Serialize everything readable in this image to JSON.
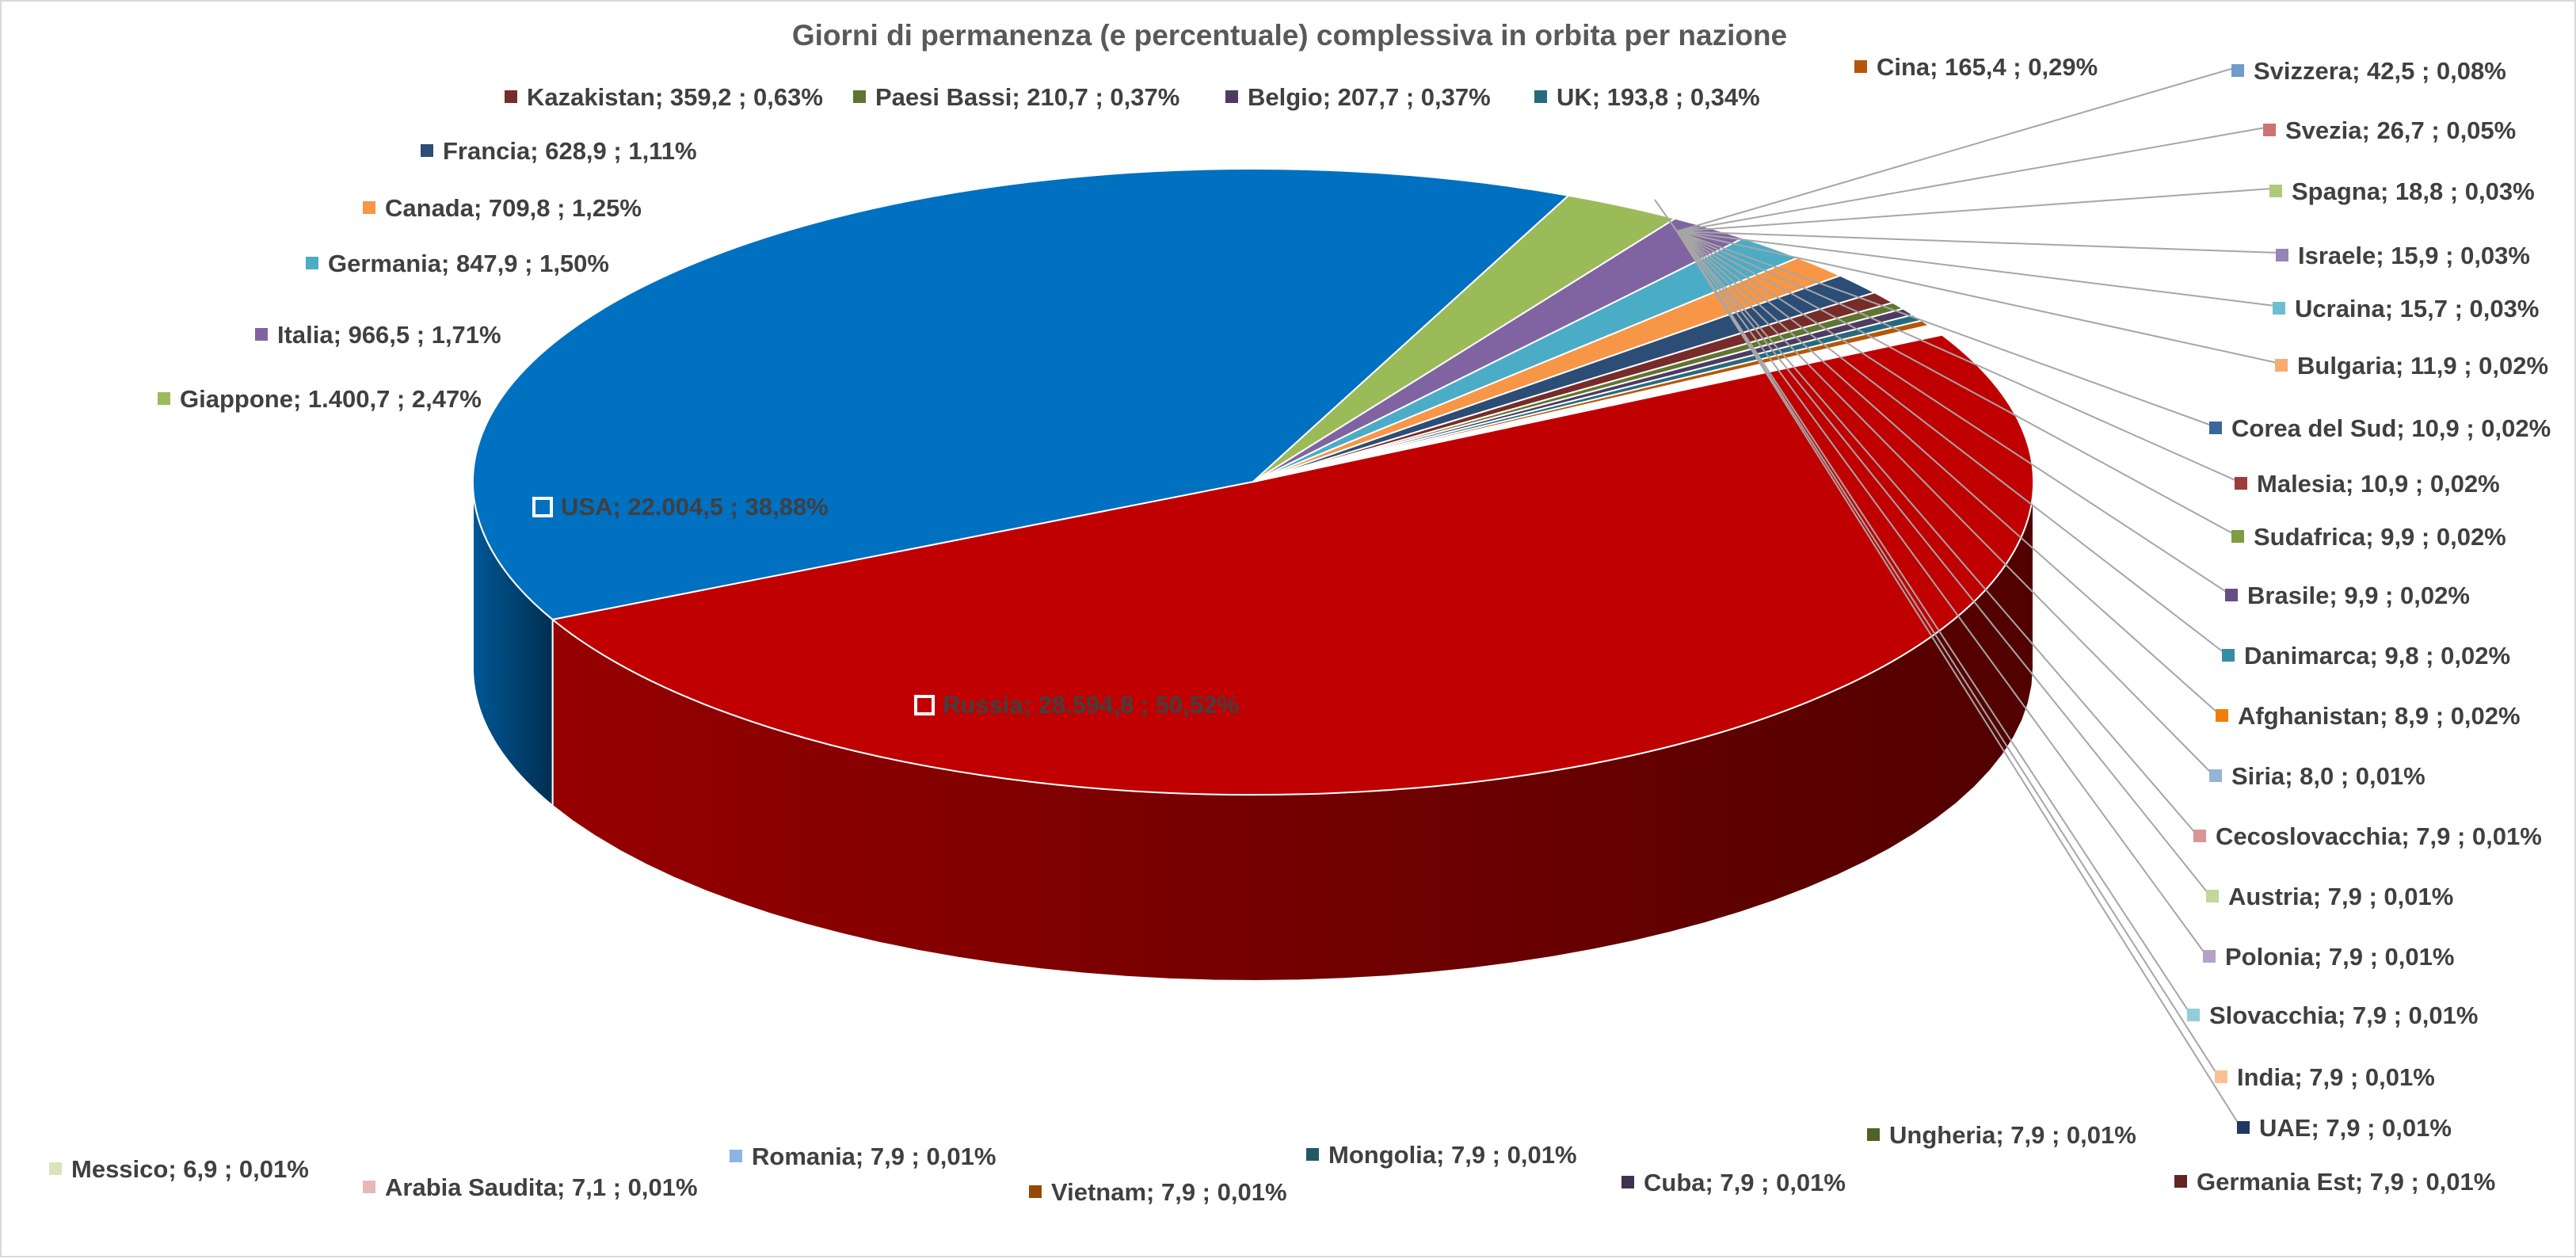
{
  "chart_data": {
    "type": "pie",
    "style": "3d",
    "title": "Giorni di permanenza (e percentuale) complessiva in orbita per nazione",
    "slices": [
      {
        "name": "Russia",
        "value": 28594.8,
        "value_text": "28.594,8",
        "percent_text": "50,52%",
        "color": "#C00000"
      },
      {
        "name": "USA",
        "value": 22004.5,
        "value_text": "22.004,5",
        "percent_text": "38,88%",
        "color": "#0070C0"
      },
      {
        "name": "Giappone",
        "value": 1400.7,
        "value_text": "1.400,7",
        "percent_text": "2,47%",
        "color": "#9BBB59"
      },
      {
        "name": "Italia",
        "value": 966.5,
        "value_text": "966,5",
        "percent_text": "1,71%",
        "color": "#8064A2"
      },
      {
        "name": "Germania",
        "value": 847.9,
        "value_text": "847,9",
        "percent_text": "1,50%",
        "color": "#4BACC6"
      },
      {
        "name": "Canada",
        "value": 709.8,
        "value_text": "709,8",
        "percent_text": "1,25%",
        "color": "#F79646"
      },
      {
        "name": "Francia",
        "value": 628.9,
        "value_text": "628,9",
        "percent_text": "1,11%",
        "color": "#2C4D75"
      },
      {
        "name": "Kazakistan",
        "value": 359.2,
        "value_text": "359,2",
        "percent_text": "0,63%",
        "color": "#772C2A"
      },
      {
        "name": "Paesi Bassi",
        "value": 210.7,
        "value_text": "210,7",
        "percent_text": "0,37%",
        "color": "#5F7530"
      },
      {
        "name": "Belgio",
        "value": 207.7,
        "value_text": "207,7",
        "percent_text": "0,37%",
        "color": "#4D3B62"
      },
      {
        "name": "UK",
        "value": 193.8,
        "value_text": "193,8",
        "percent_text": "0,34%",
        "color": "#276A7C"
      },
      {
        "name": "Cina",
        "value": 165.4,
        "value_text": "165,4",
        "percent_text": "0,29%",
        "color": "#B65708"
      },
      {
        "name": "Svizzera",
        "value": 42.5,
        "value_text": "42,5",
        "percent_text": "0,08%",
        "color": "#729ACA"
      },
      {
        "name": "Svezia",
        "value": 26.7,
        "value_text": "26,7",
        "percent_text": "0,05%",
        "color": "#CD7371"
      },
      {
        "name": "Spagna",
        "value": 18.8,
        "value_text": "18,8",
        "percent_text": "0,03%",
        "color": "#AFC97A"
      },
      {
        "name": "Israele",
        "value": 15.9,
        "value_text": "15,9",
        "percent_text": "0,03%",
        "color": "#9983B5"
      },
      {
        "name": "Ucraina",
        "value": 15.7,
        "value_text": "15,7",
        "percent_text": "0,03%",
        "color": "#6FBDD1"
      },
      {
        "name": "Bulgaria",
        "value": 11.9,
        "value_text": "11,9",
        "percent_text": "0,02%",
        "color": "#F9AB6B"
      },
      {
        "name": "Corea del Sud",
        "value": 10.9,
        "value_text": "10,9",
        "percent_text": "0,02%",
        "color": "#3A679C"
      },
      {
        "name": "Malesia",
        "value": 10.9,
        "value_text": "10,9",
        "percent_text": "0,02%",
        "color": "#9F3B38"
      },
      {
        "name": "Sudafrica",
        "value": 9.9,
        "value_text": "9,9",
        "percent_text": "0,02%",
        "color": "#7E9C40"
      },
      {
        "name": "Brasile",
        "value": 9.9,
        "value_text": "9,9",
        "percent_text": "0,02%",
        "color": "#664F82"
      },
      {
        "name": "Danimarca",
        "value": 9.8,
        "value_text": "9,8",
        "percent_text": "0,02%",
        "color": "#358EA6"
      },
      {
        "name": "Afghanistan",
        "value": 8.9,
        "value_text": "8,9",
        "percent_text": "0,02%",
        "color": "#F07F09"
      },
      {
        "name": "Siria",
        "value": 8.0,
        "value_text": "8,0",
        "percent_text": "0,01%",
        "color": "#95B3D7"
      },
      {
        "name": "Cecoslovacchia",
        "value": 7.9,
        "value_text": "7,9",
        "percent_text": "0,01%",
        "color": "#D99694"
      },
      {
        "name": "Austria",
        "value": 7.9,
        "value_text": "7,9",
        "percent_text": "0,01%",
        "color": "#C3D69B"
      },
      {
        "name": "Polonia",
        "value": 7.9,
        "value_text": "7,9",
        "percent_text": "0,01%",
        "color": "#B3A2C7"
      },
      {
        "name": "Slovacchia",
        "value": 7.9,
        "value_text": "7,9",
        "percent_text": "0,01%",
        "color": "#93CDDD"
      },
      {
        "name": "India",
        "value": 7.9,
        "value_text": "7,9",
        "percent_text": "0,01%",
        "color": "#FAC090"
      },
      {
        "name": "UAE",
        "value": 7.9,
        "value_text": "7,9",
        "percent_text": "0,01%",
        "color": "#1F3864"
      },
      {
        "name": "Germania Est",
        "value": 7.9,
        "value_text": "7,9",
        "percent_text": "0,01%",
        "color": "#632523"
      },
      {
        "name": "Ungheria",
        "value": 7.9,
        "value_text": "7,9",
        "percent_text": "0,01%",
        "color": "#4F6228"
      },
      {
        "name": "Cuba",
        "value": 7.9,
        "value_text": "7,9",
        "percent_text": "0,01%",
        "color": "#3F3151"
      },
      {
        "name": "Mongolia",
        "value": 7.9,
        "value_text": "7,9",
        "percent_text": "0,01%",
        "color": "#215967"
      },
      {
        "name": "Vietnam",
        "value": 7.9,
        "value_text": "7,9",
        "percent_text": "0,01%",
        "color": "#974806"
      },
      {
        "name": "Romania",
        "value": 7.9,
        "value_text": "7,9",
        "percent_text": "0,01%",
        "color": "#8EB4E3"
      },
      {
        "name": "Arabia Saudita",
        "value": 7.1,
        "value_text": "7,1",
        "percent_text": "0,01%",
        "color": "#E6B9B8"
      },
      {
        "name": "Messico",
        "value": 6.9,
        "value_text": "6,9",
        "percent_text": "0,01%",
        "color": "#D7E4BD"
      }
    ]
  }
}
